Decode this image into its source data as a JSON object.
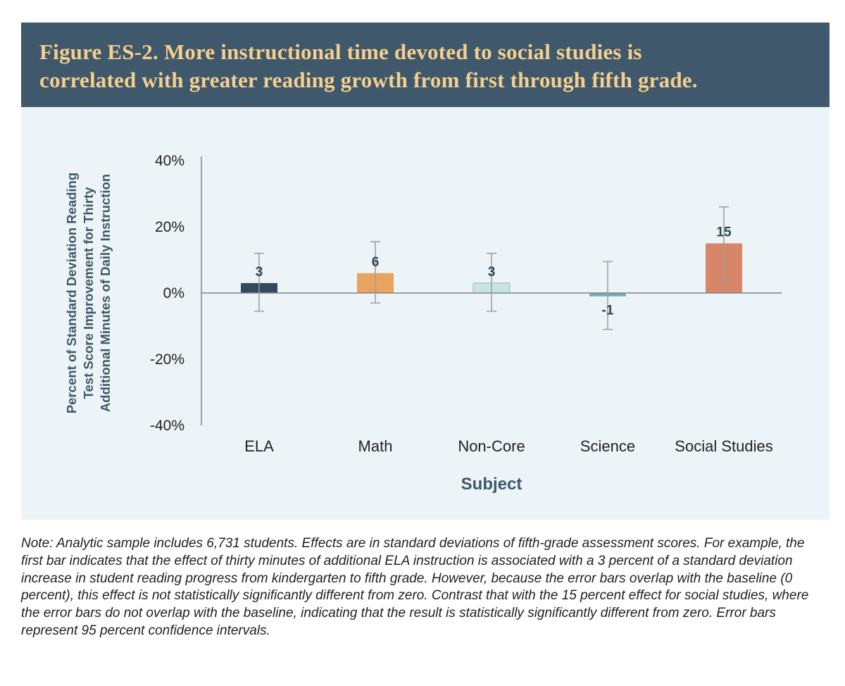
{
  "figure": {
    "title_line1": "Figure ES-2. More instructional time devoted to social studies is",
    "title_line2": "correlated with greater reading growth from first through fifth grade.",
    "note": "Note: Analytic sample includes 6,731 students. Effects are in standard deviations of fifth-grade assessment scores. For example, the first bar indicates that the effect of thirty minutes of additional ELA instruction is associated with a 3 percent of a standard deviation increase in student reading progress from kindergarten to fifth grade. However, because the error bars overlap with the baseline (0 percent), this effect is not statistically significantly different from zero. Contrast that with the 15 percent effect for social studies, where the error bars do not overlap with the baseline, indicating that the result is statistically significantly different from zero. Error bars represent 95 percent confidence intervals."
  },
  "colors": {
    "banner": "#3f586b",
    "title_text": "#f6cf8e",
    "panel": "#edf4f7",
    "axis": "#7f8487",
    "error_bar": "#9a9d9f",
    "axis_title": "#3f586b"
  },
  "chart_data": {
    "type": "bar",
    "title": "",
    "xlabel": "Subject",
    "ylabel_lines": [
      "Percent of Standard Deviation Reading",
      "Test Score Improvement for Thirty",
      "Additional Minutes of Daily Instruction"
    ],
    "ylim": [
      -40,
      40
    ],
    "yticks": [
      40,
      20,
      0,
      -20,
      -40
    ],
    "ytick_labels": [
      "40%",
      "20%",
      "0%",
      "-20%",
      "-40%"
    ],
    "categories": [
      "ELA",
      "Math",
      "Non-Core",
      "Science",
      "Social Studies"
    ],
    "values": [
      3,
      6,
      3,
      -1,
      15
    ],
    "data_labels": [
      "3",
      "6",
      "3",
      "-1",
      "15"
    ],
    "error_low": [
      -5.5,
      -3,
      -5.5,
      -11,
      3.5
    ],
    "error_high": [
      12,
      15.5,
      12,
      9.5,
      26
    ],
    "bar_colors": [
      "#34495a",
      "#e8a35e",
      "#c9e5e0",
      "#6fb1b1",
      "#d8866a"
    ],
    "grid": false,
    "legend": "none"
  }
}
